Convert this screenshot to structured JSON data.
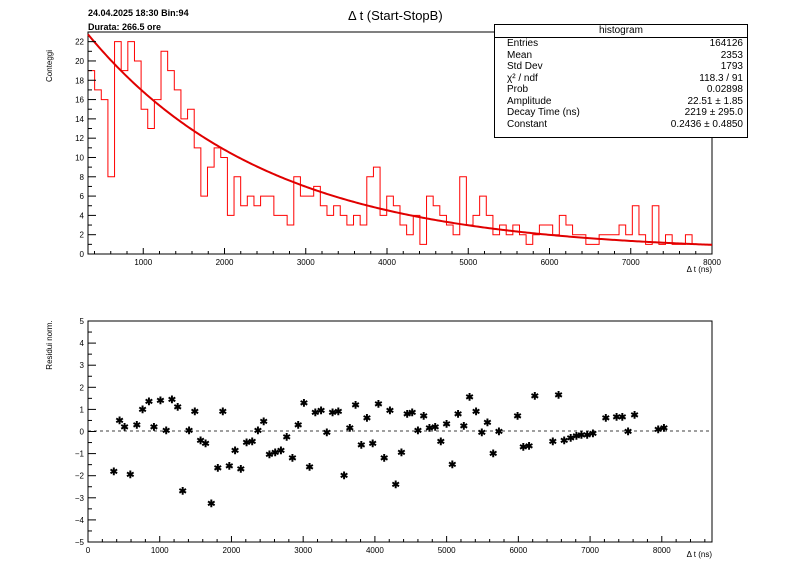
{
  "header": {
    "info_line": "24.04.2025 18:30 Bin:94",
    "duration_line": "Durata: 266.5 ore",
    "title": "Δ t (Start-StopB)"
  },
  "stats": {
    "title": "histogram",
    "rows": [
      {
        "label": "Entries",
        "value": "164126"
      },
      {
        "label": "Mean",
        "value": "2353"
      },
      {
        "label": "Std Dev",
        "value": "1793"
      },
      {
        "label": "χ² / ndf",
        "value": "118.3 / 91"
      },
      {
        "label": "Prob",
        "value": "0.02898"
      },
      {
        "label": "Amplitude",
        "value": "22.51 ± 1.85"
      },
      {
        "label": "Decay Time (ns)",
        "value": "2219 ± 295.0"
      },
      {
        "label": "Constant",
        "value": "0.2436 ± 0.4850"
      }
    ]
  },
  "chart_data": [
    {
      "type": "histogram",
      "ylabel": "Conteggi",
      "xlabel": "Δ t (ns)",
      "xlim": [
        320,
        8000
      ],
      "ylim": [
        0,
        23
      ],
      "x_ticks": [
        "1000",
        "2000",
        "3000",
        "4000",
        "5000",
        "6000",
        "7000",
        "8000"
      ],
      "y_ticks": [
        "0",
        "2",
        "4",
        "6",
        "8",
        "10",
        "12",
        "14",
        "16",
        "18",
        "20",
        "22"
      ],
      "line_color": "#ff0000",
      "fit_color": "#e00000",
      "bin_width": 81.7,
      "counts": [
        19,
        17,
        16,
        8,
        22,
        19,
        22,
        20,
        15,
        13,
        16,
        21,
        19,
        17,
        14,
        15,
        11,
        6,
        9,
        11,
        10,
        4,
        8,
        5,
        6,
        5,
        6,
        6,
        4,
        4,
        3,
        8,
        6,
        6,
        7,
        5,
        4,
        5,
        4,
        3,
        4,
        3,
        8,
        9,
        4,
        6,
        5,
        3,
        2,
        4,
        1,
        6,
        5,
        4,
        3,
        2,
        8,
        3,
        4,
        6,
        4,
        2,
        3,
        2,
        3,
        2,
        1,
        2,
        3,
        3,
        2,
        4,
        3,
        2,
        2,
        1,
        1,
        2,
        2,
        2,
        3,
        2,
        5,
        2,
        1,
        5,
        1,
        2,
        1,
        1,
        2,
        1,
        1,
        1
      ],
      "fit": {
        "amplitude": 22.51,
        "decay_time": 2219,
        "constant": 0.2436
      }
    },
    {
      "type": "scatter",
      "ylabel": "Residui norm.",
      "xlabel": "Δ t (ns)",
      "xlim": [
        0,
        8700
      ],
      "ylim": [
        -5,
        5
      ],
      "x_ticks": [
        "0",
        "1000",
        "2000",
        "3000",
        "4000",
        "5000",
        "6000",
        "7000",
        "8000"
      ],
      "y_ticks": [
        "−5",
        "−4",
        "−3",
        "−2",
        "−1",
        "0",
        "1",
        "2",
        "3",
        "4",
        "5"
      ],
      "marker_color": "#000000",
      "x": [
        360,
        440,
        510,
        590,
        680,
        760,
        850,
        920,
        1010,
        1090,
        1170,
        1250,
        1320,
        1410,
        1490,
        1570,
        1640,
        1720,
        1810,
        1880,
        1970,
        2050,
        2130,
        2210,
        2290,
        2370,
        2450,
        2530,
        2610,
        2690,
        2770,
        2850,
        2930,
        3010,
        3090,
        3170,
        3250,
        3330,
        3410,
        3490,
        3570,
        3650,
        3730,
        3810,
        3890,
        3970,
        4050,
        4130,
        4210,
        4290,
        4370,
        4450,
        4520,
        4600,
        4680,
        4760,
        4840,
        4920,
        5000,
        5080,
        5160,
        5240,
        5320,
        5410,
        5490,
        5570,
        5650,
        5730,
        5990,
        6070,
        6150,
        6230,
        6480,
        6560,
        6640,
        6730,
        6810,
        6880,
        6960,
        7040,
        7220,
        7370,
        7450,
        7530,
        7620,
        7950,
        8030
      ],
      "y": [
        -1.8,
        0.5,
        0.2,
        -1.95,
        0.3,
        1.0,
        1.35,
        0.2,
        1.4,
        0.05,
        1.45,
        1.1,
        -2.7,
        0.05,
        0.9,
        -0.4,
        -0.55,
        -3.25,
        -1.65,
        0.9,
        -1.55,
        -0.85,
        -1.7,
        -0.5,
        -0.45,
        0.05,
        0.45,
        -1.05,
        -0.95,
        -0.85,
        -0.25,
        -1.2,
        0.3,
        1.3,
        -1.6,
        0.85,
        0.95,
        -0.05,
        0.85,
        0.9,
        -2.0,
        0.15,
        1.2,
        -0.6,
        0.6,
        -0.55,
        1.25,
        -1.2,
        0.95,
        -2.4,
        -0.95,
        0.8,
        0.85,
        0.05,
        0.7,
        0.15,
        0.2,
        -0.45,
        0.35,
        -1.5,
        0.8,
        0.25,
        1.55,
        0.9,
        -0.05,
        0.4,
        -1.0,
        0.0,
        0.7,
        -0.7,
        -0.65,
        1.6,
        -0.45,
        1.65,
        -0.4,
        -0.3,
        -0.2,
        -0.15,
        -0.15,
        -0.1,
        0.6,
        0.65,
        0.65,
        0.0,
        0.75,
        0.1,
        0.15
      ]
    }
  ]
}
